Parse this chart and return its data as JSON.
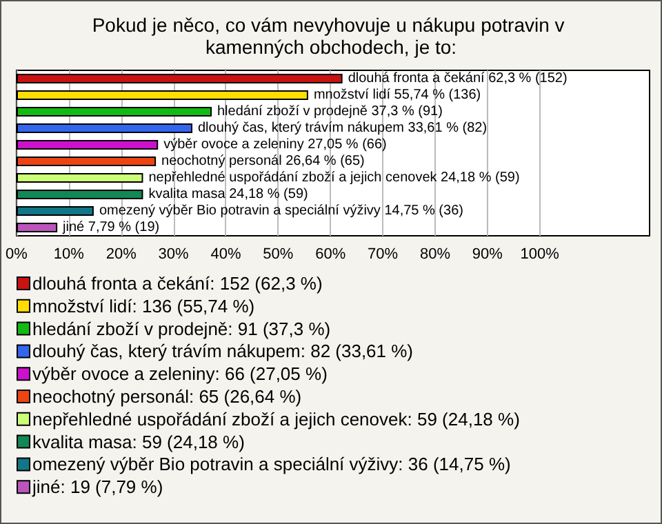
{
  "chart_data": {
    "type": "bar",
    "orientation": "horizontal",
    "stacked": true,
    "title": "Pokud je něco, co vám nevyhovuje u nákupu potravin v kamenných obchodech, je to:",
    "categories": [
      null,
      null,
      null,
      null,
      null,
      null,
      null,
      null,
      null,
      null
    ],
    "series": [
      {
        "name": "dlouhá fronta a čekání: 152 (62,3 %)",
        "color": "#cc1111",
        "values": [
          62.3,
          null,
          null,
          null,
          null,
          null,
          null,
          null,
          null,
          null
        ],
        "value_labels": [
          "dlouhá fronta a čekání 62,3 % (152)",
          null,
          null,
          null,
          null,
          null,
          null,
          null,
          null,
          null
        ]
      },
      {
        "name": "množství lidí: 136 (55,74 %)",
        "color": "#ffdd00",
        "values": [
          null,
          55.74,
          null,
          null,
          null,
          null,
          null,
          null,
          null,
          null
        ],
        "value_labels": [
          null,
          "množství lidí 55,74 % (136)",
          null,
          null,
          null,
          null,
          null,
          null,
          null,
          null
        ]
      },
      {
        "name": "hledání zboží v prodejně: 91 (37,3 %)",
        "color": "#11bb11",
        "values": [
          null,
          null,
          37.3,
          null,
          null,
          null,
          null,
          null,
          null,
          null
        ],
        "value_labels": [
          null,
          null,
          "hledání zboží v prodejně 37,3 % (91)",
          null,
          null,
          null,
          null,
          null,
          null,
          null
        ]
      },
      {
        "name": "dlouhý čas, který trávím nákupem: 82 (33,61 %)",
        "color": "#3366ee",
        "values": [
          null,
          null,
          null,
          33.61,
          null,
          null,
          null,
          null,
          null,
          null
        ],
        "value_labels": [
          null,
          null,
          null,
          "dlouhý čas, který trávím nákupem 33,61 % (82)",
          null,
          null,
          null,
          null,
          null,
          null
        ]
      },
      {
        "name": "výběr ovoce a zeleniny: 66 (27,05 %)",
        "color": "#cc11cc",
        "values": [
          null,
          null,
          null,
          null,
          27.05,
          null,
          null,
          null,
          null,
          null
        ],
        "value_labels": [
          null,
          null,
          null,
          null,
          "výběr ovoce a zeleniny 27,05 % (66)",
          null,
          null,
          null,
          null,
          null
        ]
      },
      {
        "name": "neochotný personál: 65 (26,64 %)",
        "color": "#ee4411",
        "values": [
          null,
          null,
          null,
          null,
          null,
          26.64,
          null,
          null,
          null,
          null
        ],
        "value_labels": [
          null,
          null,
          null,
          null,
          null,
          "neochotný personál 26,64 % (65)",
          null,
          null,
          null,
          null
        ]
      },
      {
        "name": "nepřehledné uspořádání zboží a jejich cenovek: 59 (24,18 %)",
        "color": "#ccff77",
        "values": [
          null,
          null,
          null,
          null,
          null,
          null,
          24.18,
          null,
          null,
          null
        ],
        "value_labels": [
          null,
          null,
          null,
          null,
          null,
          null,
          "nepřehledné uspořádání zboží a jejich cenovek 24,18 % (59)",
          null,
          null,
          null
        ]
      },
      {
        "name": "kvalita masa: 59 (24,18 %)",
        "color": "#118855",
        "values": [
          null,
          null,
          null,
          null,
          null,
          null,
          null,
          24.18,
          null,
          null
        ],
        "value_labels": [
          null,
          null,
          null,
          null,
          null,
          null,
          null,
          "kvalita masa 24,18 % (59)",
          null,
          null
        ]
      },
      {
        "name": "omezený výběr Bio potravin a speciální výživy: 36 (14,75 %)",
        "color": "#117788",
        "values": [
          null,
          null,
          null,
          null,
          null,
          null,
          null,
          null,
          14.75,
          null
        ],
        "value_labels": [
          null,
          null,
          null,
          null,
          null,
          null,
          null,
          null,
          "omezený výběr Bio potravin a speciální výživy 14,75 % (36)",
          null
        ]
      },
      {
        "name": "jiné: 19 (7,79 %)",
        "color": "#bb55bb",
        "values": [
          null,
          null,
          null,
          null,
          null,
          null,
          null,
          null,
          null,
          7.79
        ],
        "value_labels": [
          null,
          null,
          null,
          null,
          null,
          null,
          null,
          null,
          null,
          "jiné 7,79 % (19)"
        ]
      }
    ],
    "xlim": [
      0,
      121
    ],
    "xticks": [
      {
        "value": 0,
        "label": "0%"
      },
      {
        "value": 10,
        "label": "10%"
      },
      {
        "value": 20,
        "label": "20%"
      },
      {
        "value": 30,
        "label": "30%"
      },
      {
        "value": 40,
        "label": "40%"
      },
      {
        "value": 50,
        "label": "50%"
      },
      {
        "value": 60,
        "label": "60%"
      },
      {
        "value": 70,
        "label": "70%"
      },
      {
        "value": 80,
        "label": "80%"
      },
      {
        "value": 90,
        "label": "90%"
      },
      {
        "value": 100,
        "label": "100%"
      }
    ],
    "grid": "x",
    "legend": "bottom"
  }
}
